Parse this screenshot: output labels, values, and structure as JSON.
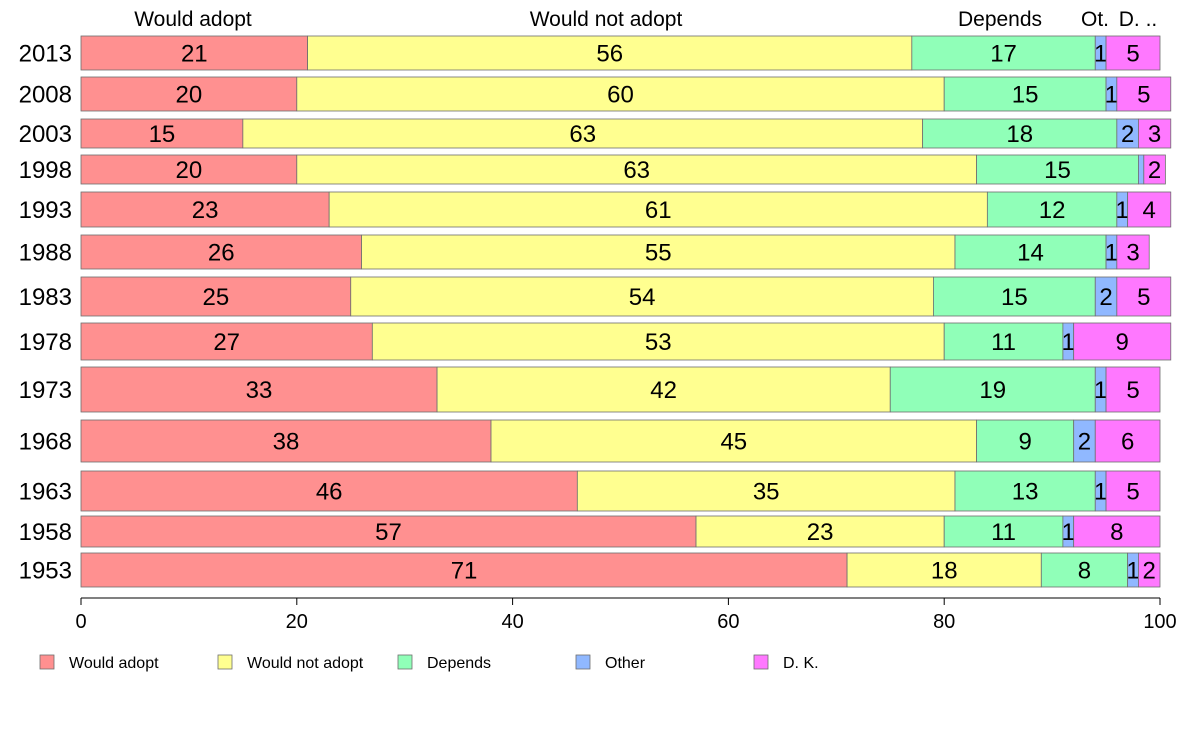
{
  "chart_data": {
    "type": "bar",
    "orientation": "horizontal",
    "stacked": true,
    "categories": [
      "2013",
      "2008",
      "2003",
      "1998",
      "1993",
      "1988",
      "1983",
      "1978",
      "1973",
      "1968",
      "1963",
      "1958",
      "1953"
    ],
    "series": [
      {
        "name": "Would adopt",
        "color": "#ff9090",
        "values": [
          21,
          20,
          15,
          20,
          23,
          26,
          25,
          27,
          33,
          38,
          46,
          57,
          71
        ]
      },
      {
        "name": "Would not adopt",
        "color": "#ffff90",
        "values": [
          56,
          60,
          63,
          63,
          61,
          55,
          54,
          53,
          42,
          45,
          35,
          23,
          18
        ]
      },
      {
        "name": "Depends",
        "color": "#90ffb8",
        "values": [
          17,
          15,
          18,
          15,
          12,
          14,
          15,
          11,
          19,
          9,
          13,
          11,
          8
        ]
      },
      {
        "name": "Other",
        "color": "#90b8ff",
        "values": [
          1,
          1,
          2,
          0.5,
          1,
          1,
          2,
          1,
          1,
          2,
          1,
          1,
          1
        ]
      },
      {
        "name": "D. K.",
        "color": "#ff78ff",
        "values": [
          5,
          5,
          3,
          2,
          4,
          3,
          5,
          9,
          5,
          6,
          5,
          8,
          2
        ]
      }
    ],
    "data_labels": [
      [
        "21",
        "56",
        "17",
        "1",
        "5"
      ],
      [
        "20",
        "60",
        "15",
        "1",
        "5"
      ],
      [
        "15",
        "63",
        "18",
        "2",
        "3"
      ],
      [
        "20",
        "63",
        "15",
        "",
        "2"
      ],
      [
        "23",
        "61",
        "12",
        "1",
        "4"
      ],
      [
        "26",
        "55",
        "14",
        "1",
        "3"
      ],
      [
        "25",
        "54",
        "15",
        "2",
        "5"
      ],
      [
        "27",
        "53",
        "11",
        "1",
        "9"
      ],
      [
        "33",
        "42",
        "19",
        "1",
        "5"
      ],
      [
        "38",
        "45",
        "9",
        "2",
        "6"
      ],
      [
        "46",
        "35",
        "13",
        "1",
        "5"
      ],
      [
        "57",
        "23",
        "11",
        "1",
        "8"
      ],
      [
        "71",
        "18",
        "8",
        "1",
        "2"
      ]
    ],
    "column_headers": [
      "Would adopt",
      "Would not adopt",
      "Depends",
      "Ot.",
      "D. .."
    ],
    "x_ticks": [
      "0",
      "20",
      "40",
      "60",
      "80",
      "100"
    ],
    "xlim": [
      0,
      100
    ],
    "xlabel": "",
    "ylabel": "",
    "title": "",
    "grid": false,
    "legend": {
      "position": "bottom",
      "entries": [
        "Would adopt",
        "Would not adopt",
        "Depends",
        "Other",
        "D. K."
      ]
    }
  }
}
